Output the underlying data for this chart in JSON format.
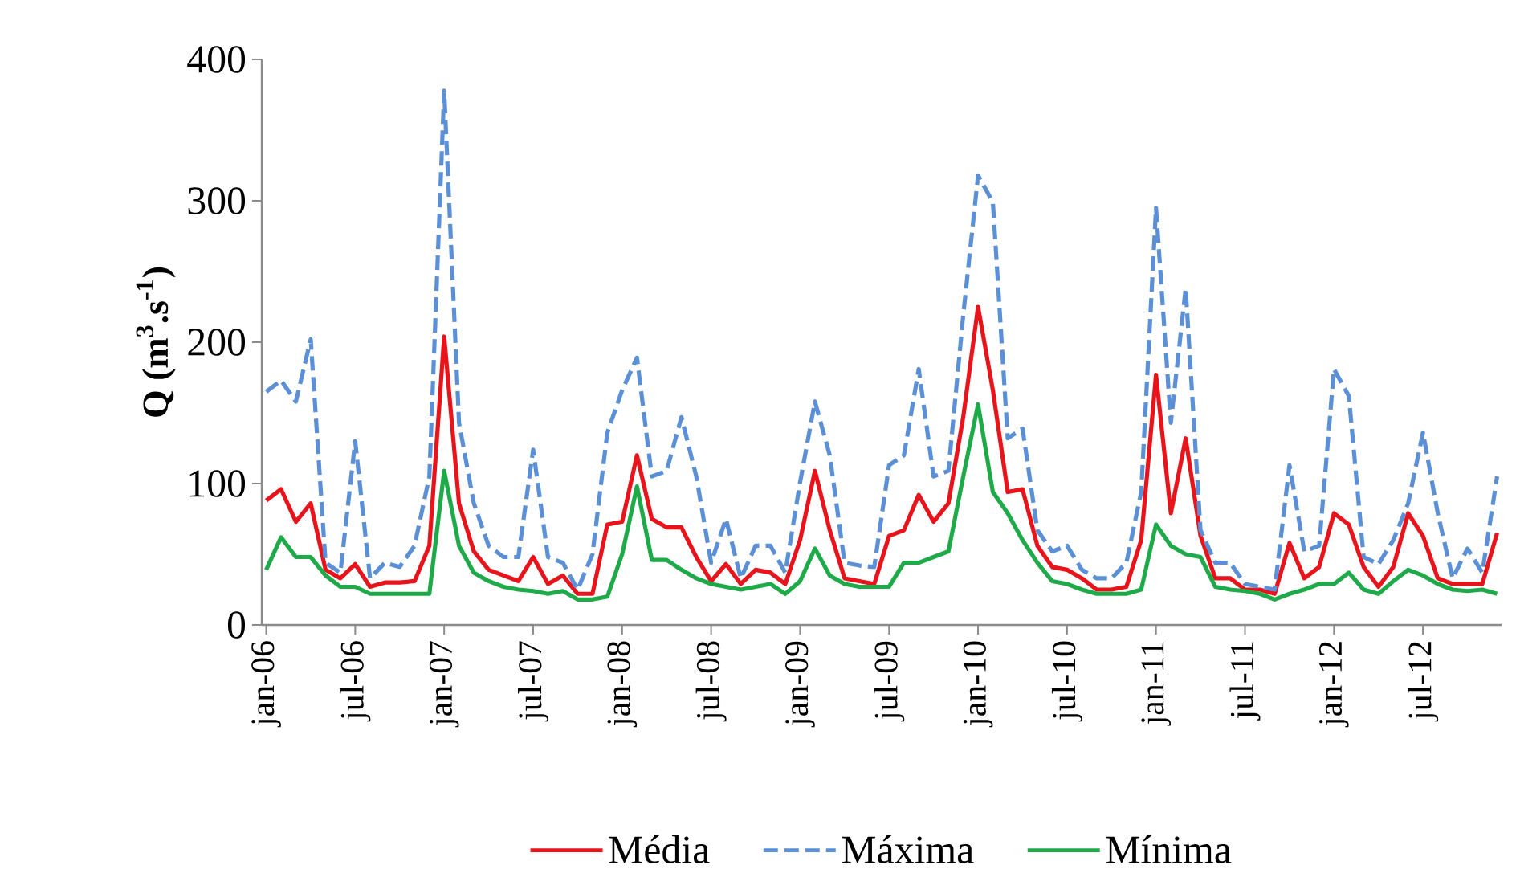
{
  "chart_data": {
    "type": "line",
    "ylabel": "**Q (m$^{3}$.s$^{-1}$)**",
    "categories": [
      "jan-06",
      null,
      null,
      null,
      null,
      null,
      "jul-06",
      null,
      null,
      null,
      null,
      null,
      "jan-07",
      null,
      null,
      null,
      null,
      null,
      "jul-07",
      null,
      null,
      null,
      null,
      null,
      "jan-08",
      null,
      null,
      null,
      null,
      null,
      "jul-08",
      null,
      null,
      null,
      null,
      null,
      "jan-09",
      null,
      null,
      null,
      null,
      null,
      "jul-09",
      null,
      null,
      null,
      null,
      null,
      "jan-10",
      null,
      null,
      null,
      null,
      null,
      "jul-10",
      null,
      null,
      null,
      null,
      null,
      "jan-11",
      null,
      null,
      null,
      null,
      null,
      "jul-11",
      null,
      null,
      null,
      null,
      null,
      "jan-12",
      null,
      null,
      null,
      null,
      null,
      "jul-12",
      null,
      null,
      null,
      null,
      null
    ],
    "series": [
      {
        "name": "Média",
        "color": "#e8141c",
        "line_style": "solid",
        "values": [
          88,
          96,
          73,
          86,
          39,
          33,
          43,
          27,
          30,
          30,
          31,
          56,
          204,
          86,
          52,
          39,
          35,
          31,
          48,
          29,
          35,
          22,
          22,
          71,
          73,
          120,
          75,
          69,
          69,
          48,
          31,
          43,
          29,
          39,
          37,
          29,
          60,
          109,
          67,
          33,
          31,
          29,
          63,
          67,
          92,
          73,
          86,
          147,
          225,
          166,
          94,
          96,
          56,
          41,
          39,
          33,
          25,
          25,
          27,
          60,
          177,
          79,
          132,
          63,
          33,
          33,
          25,
          25,
          22,
          58,
          33,
          41,
          79,
          71,
          41,
          27,
          41,
          79,
          63,
          33,
          29,
          29,
          29,
          65
        ]
      },
      {
        "name": "Máxima",
        "color": "#5b8fd6",
        "line_style": "dashed",
        "values": [
          165,
          173,
          158,
          202,
          44,
          37,
          130,
          33,
          44,
          41,
          56,
          105,
          378,
          143,
          86,
          56,
          48,
          48,
          124,
          48,
          44,
          25,
          50,
          136,
          166,
          189,
          105,
          109,
          147,
          105,
          44,
          75,
          33,
          56,
          56,
          37,
          101,
          158,
          120,
          44,
          42,
          41,
          113,
          120,
          181,
          105,
          109,
          219,
          318,
          299,
          132,
          139,
          67,
          52,
          56,
          39,
          33,
          33,
          44,
          94,
          295,
          143,
          238,
          67,
          44,
          44,
          29,
          27,
          25,
          113,
          52,
          56,
          181,
          162,
          48,
          43,
          60,
          86,
          136,
          79,
          33,
          54,
          37,
          105
        ]
      },
      {
        "name": "Mínima",
        "color": "#1faa4a",
        "line_style": "solid",
        "values": [
          39,
          62,
          48,
          48,
          35,
          27,
          27,
          22,
          22,
          22,
          22,
          22,
          109,
          56,
          37,
          31,
          27,
          25,
          24,
          22,
          24,
          18,
          18,
          20,
          50,
          98,
          46,
          46,
          39,
          33,
          29,
          27,
          25,
          27,
          29,
          22,
          31,
          54,
          35,
          29,
          27,
          27,
          27,
          44,
          44,
          48,
          52,
          105,
          156,
          94,
          79,
          60,
          44,
          31,
          29,
          25,
          22,
          22,
          22,
          25,
          71,
          56,
          50,
          48,
          27,
          25,
          24,
          22,
          18,
          22,
          25,
          29,
          29,
          37,
          25,
          22,
          31,
          39,
          35,
          29,
          25,
          24,
          25,
          22
        ]
      }
    ],
    "ylim": [
      0,
      400
    ],
    "yticks": [
      0,
      100,
      200,
      300,
      400
    ],
    "marker": "none",
    "legend": "bottom"
  }
}
